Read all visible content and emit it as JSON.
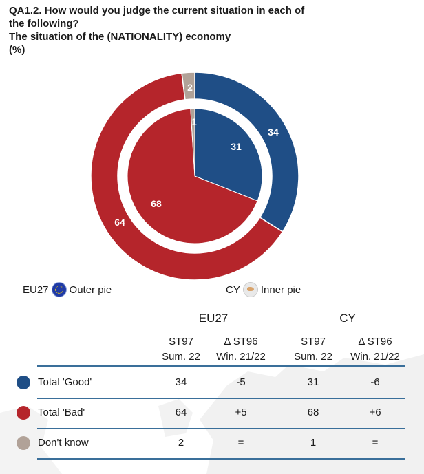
{
  "title": {
    "line1": "QA1.2. How would you judge the current situation in each of",
    "line2": "the following?",
    "line3": "The situation of the (NATIONALITY) economy",
    "line4": "(%)"
  },
  "colors": {
    "good": "#1f4e86",
    "bad": "#b5252b",
    "dontknow": "#b1a298",
    "rule": "#3a6f9a"
  },
  "chart_data": {
    "type": "pie",
    "categories": [
      "Total 'Good'",
      "Total 'Bad'",
      "Don't know"
    ],
    "series": [
      {
        "name": "EU27",
        "values": [
          34,
          64,
          2
        ]
      },
      {
        "name": "CY",
        "values": [
          31,
          68,
          1
        ]
      }
    ]
  },
  "legend": {
    "outer_geo": "EU27",
    "outer_label": "Outer pie",
    "inner_geo": "CY",
    "inner_label": "Inner pie"
  },
  "table": {
    "groups": [
      "EU27",
      "CY"
    ],
    "columns": [
      {
        "line1": "ST97",
        "line2": "Sum. 22"
      },
      {
        "line1": "Δ ST96",
        "line2": "Win. 21/22"
      },
      {
        "line1": "ST97",
        "line2": "Sum. 22"
      },
      {
        "line1": "Δ ST96",
        "line2": "Win. 21/22"
      }
    ],
    "rows": [
      {
        "label": "Total 'Good'",
        "cells": [
          "34",
          "-5",
          "31",
          "-6"
        ]
      },
      {
        "label": "Total 'Bad'",
        "cells": [
          "64",
          "+5",
          "68",
          "+6"
        ]
      },
      {
        "label": "Don't know",
        "cells": [
          "2",
          "=",
          "1",
          "="
        ]
      }
    ]
  }
}
